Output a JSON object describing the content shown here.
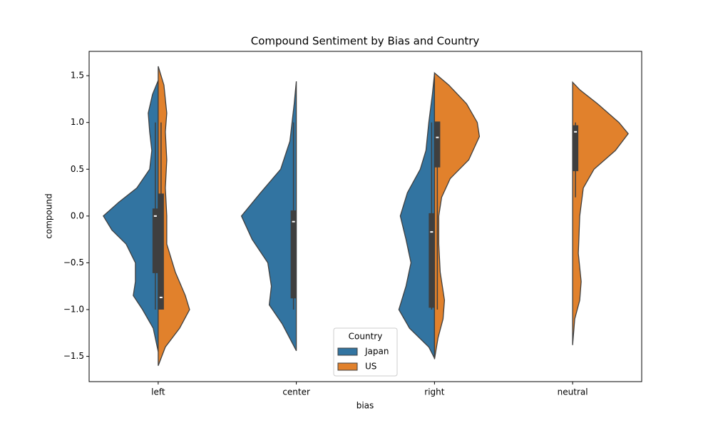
{
  "chart_data": {
    "type": "violin",
    "title": "Compound Sentiment by Bias and Country",
    "x_label": "bias",
    "y_label": "compound",
    "categories": [
      "left",
      "center",
      "right",
      "neutral"
    ],
    "ylim": [
      -1.77,
      1.76
    ],
    "yticks": [
      {
        "value": -1.5,
        "label": "−1.5"
      },
      {
        "value": -1,
        "label": "−1.0"
      },
      {
        "value": -0.5,
        "label": "−0.5"
      },
      {
        "value": 0,
        "label": "0.0"
      },
      {
        "value": 0.5,
        "label": "0.5"
      },
      {
        "value": 1,
        "label": "1.0"
      },
      {
        "value": 1.5,
        "label": "1.5"
      }
    ],
    "legend_title": "Country",
    "legend_position": "bottom-center",
    "series": [
      {
        "name": "Japan",
        "color": "#3274a1",
        "values": [
          {
            "ys": [
              1.45,
              1.3,
              1.1,
              0.9,
              0.7,
              0.5,
              0.3,
              0.15,
              0,
              -0.15,
              -0.3,
              -0.5,
              -0.7,
              -0.85,
              -1.0,
              -1.2,
              -1.45
            ],
            "density": [
              0,
              0.08,
              0.14,
              0.12,
              0.09,
              0.12,
              0.3,
              0.55,
              0.77,
              0.65,
              0.45,
              0.32,
              0.32,
              0.35,
              0.22,
              0.07,
              0
            ],
            "box": [
              -0.61,
              0.08
            ],
            "whisker": [
              -1,
              1
            ],
            "median": 0
          },
          {
            "ys": [
              1.44,
              1.2,
              1.0,
              0.8,
              0.5,
              0.25,
              0,
              -0.25,
              -0.5,
              -0.75,
              -0.95,
              -1.15,
              -1.44
            ],
            "density": [
              0,
              0.03,
              0.06,
              0.09,
              0.22,
              0.5,
              0.77,
              0.62,
              0.4,
              0.35,
              0.38,
              0.2,
              0
            ],
            "box": [
              -0.88,
              0.06
            ],
            "whisker": [
              -1,
              1
            ],
            "median": -0.06
          },
          {
            "ys": [
              1.52,
              1.3,
              1.0,
              0.7,
              0.5,
              0.25,
              0,
              -0.25,
              -0.5,
              -0.75,
              -1.0,
              -1.2,
              -1.4,
              -1.52
            ],
            "density": [
              0,
              0.03,
              0.08,
              0.12,
              0.2,
              0.38,
              0.48,
              0.4,
              0.33,
              0.4,
              0.5,
              0.35,
              0.08,
              0
            ],
            "box": [
              -0.98,
              0.03
            ],
            "whisker": [
              -1,
              1
            ],
            "median": -0.17
          },
          null
        ]
      },
      {
        "name": "US",
        "color": "#e1812c",
        "values": [
          {
            "ys": [
              1.6,
              1.4,
              1.1,
              0.9,
              0.6,
              0.3,
              0,
              -0.3,
              -0.6,
              -0.85,
              -1.0,
              -1.2,
              -1.4,
              -1.6
            ],
            "density": [
              0,
              0.08,
              0.12,
              0.1,
              0.12,
              0.1,
              0.12,
              0.12,
              0.24,
              0.38,
              0.44,
              0.3,
              0.1,
              0
            ],
            "box": [
              -1.0,
              0.24
            ],
            "whisker": [
              -1,
              1
            ],
            "median": -0.87
          },
          null,
          {
            "ys": [
              1.53,
              1.4,
              1.2,
              1.0,
              0.85,
              0.6,
              0.4,
              0.2,
              0,
              -0.3,
              -0.6,
              -0.9,
              -1.1,
              -1.3,
              -1.53
            ],
            "density": [
              0,
              0.2,
              0.45,
              0.6,
              0.63,
              0.48,
              0.22,
              0.1,
              0.06,
              0.06,
              0.08,
              0.14,
              0.12,
              0.05,
              0
            ],
            "box": [
              0.52,
              1.01
            ],
            "whisker": [
              -1,
              1
            ],
            "median": 0.84
          },
          {
            "ys": [
              1.43,
              1.35,
              1.2,
              1.0,
              0.88,
              0.7,
              0.5,
              0.3,
              0,
              -0.4,
              -0.7,
              -0.9,
              -1.1,
              -1.38
            ],
            "density": [
              0,
              0.1,
              0.35,
              0.65,
              0.78,
              0.6,
              0.3,
              0.15,
              0.1,
              0.08,
              0.12,
              0.1,
              0.03,
              0
            ],
            "box": [
              0.48,
              0.97
            ],
            "whisker": [
              0.2,
              1.0
            ],
            "median": 0.9
          }
        ]
      }
    ]
  }
}
